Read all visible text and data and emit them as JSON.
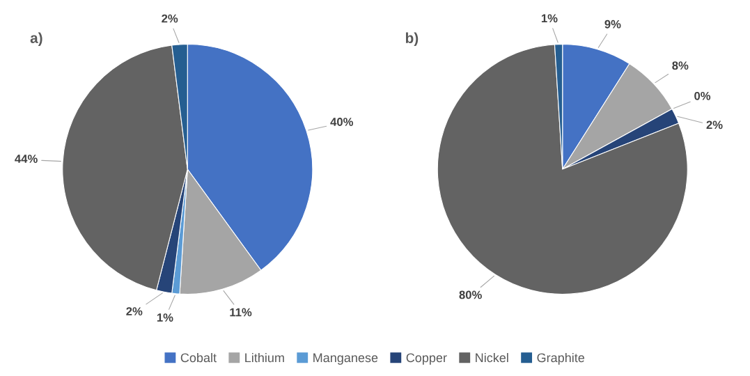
{
  "chart_data": [
    {
      "type": "pie",
      "title": "a)",
      "categories": [
        "Cobalt",
        "Lithium",
        "Manganese",
        "Copper",
        "Nickel",
        "Graphite"
      ],
      "values": [
        40,
        11,
        1,
        2,
        44,
        2
      ],
      "colors": [
        "#4472c4",
        "#a5a5a5",
        "#5b9bd5",
        "#264478",
        "#636363",
        "#255e91"
      ],
      "value_labels": [
        "40%",
        "11%",
        "1%",
        "2%",
        "44%",
        "2%"
      ],
      "legend": "bottom"
    },
    {
      "type": "pie",
      "title": "b)",
      "categories": [
        null,
        null,
        null,
        null,
        null,
        null
      ],
      "values": [
        9,
        8,
        0,
        2,
        80,
        1
      ],
      "colors": [
        "#4472c4",
        "#a5a5a5",
        "#5b9bd5",
        "#264478",
        "#636363",
        "#255e91"
      ],
      "value_labels": [
        "9%",
        "8%",
        "0%",
        "2%",
        "80%",
        "1%"
      ]
    }
  ]
}
